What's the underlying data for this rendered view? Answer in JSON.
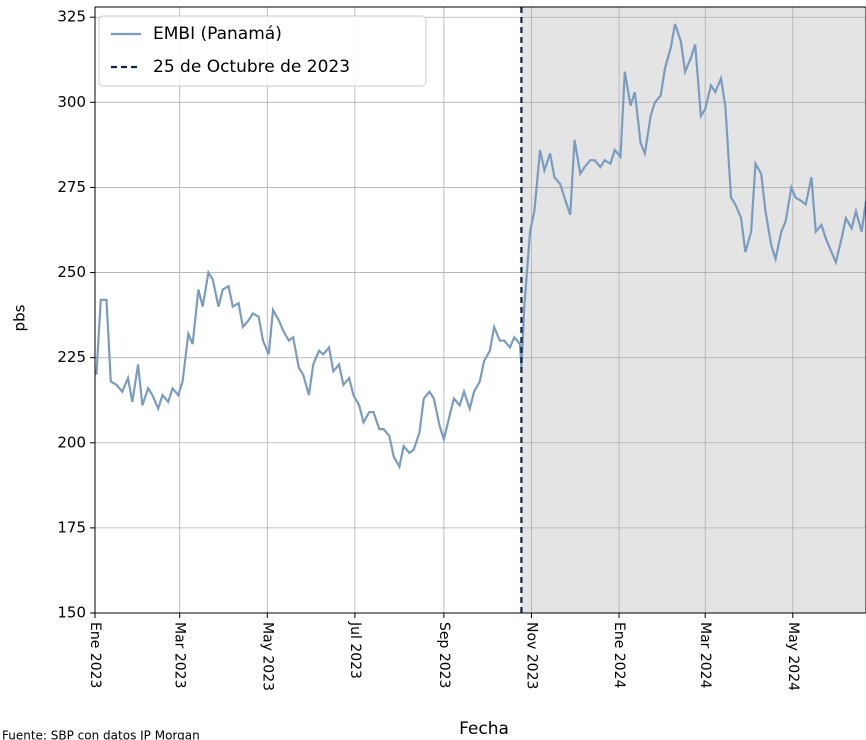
{
  "chart_data": {
    "type": "line",
    "ylabel": "pbs",
    "xlabel": "Fecha",
    "source": "Fuente: SBP con datos JP Morgan",
    "xlim": [
      "2023-01-01",
      "2024-06-21"
    ],
    "ylim": [
      150,
      328
    ],
    "yticks": [
      150,
      175,
      200,
      225,
      250,
      275,
      300,
      325
    ],
    "xticks": [
      {
        "value": "2023-01-01",
        "label": "Ene 2023"
      },
      {
        "value": "2023-03-01",
        "label": "Mar 2023"
      },
      {
        "value": "2023-05-01",
        "label": "May 2023"
      },
      {
        "value": "2023-07-01",
        "label": "Jul 2023"
      },
      {
        "value": "2023-09-01",
        "label": "Sep 2023"
      },
      {
        "value": "2023-11-01",
        "label": "Nov 2023"
      },
      {
        "value": "2024-01-01",
        "label": "Ene 2024"
      },
      {
        "value": "2024-03-01",
        "label": "Mar 2024"
      },
      {
        "value": "2024-05-01",
        "label": "May 2024"
      }
    ],
    "grid": true,
    "legend": "upper left",
    "vline": {
      "x": "2023-10-25",
      "label": "25 de Octubre de 2023",
      "color": "#0b2747",
      "style": "dashed"
    },
    "shade_after_vline": true,
    "shade_color": "#e4e4e4",
    "x": [
      "2023-01-02",
      "2023-01-05",
      "2023-01-09",
      "2023-01-12",
      "2023-01-16",
      "2023-01-20",
      "2023-01-24",
      "2023-01-27",
      "2023-01-31",
      "2023-02-03",
      "2023-02-07",
      "2023-02-10",
      "2023-02-14",
      "2023-02-17",
      "2023-02-21",
      "2023-02-24",
      "2023-02-28",
      "2023-03-03",
      "2023-03-07",
      "2023-03-10",
      "2023-03-14",
      "2023-03-17",
      "2023-03-21",
      "2023-03-24",
      "2023-03-28",
      "2023-03-31",
      "2023-04-04",
      "2023-04-07",
      "2023-04-11",
      "2023-04-14",
      "2023-04-18",
      "2023-04-21",
      "2023-04-25",
      "2023-04-28",
      "2023-05-02",
      "2023-05-05",
      "2023-05-09",
      "2023-05-12",
      "2023-05-16",
      "2023-05-19",
      "2023-05-23",
      "2023-05-26",
      "2023-05-30",
      "2023-06-02",
      "2023-06-06",
      "2023-06-09",
      "2023-06-13",
      "2023-06-16",
      "2023-06-20",
      "2023-06-23",
      "2023-06-27",
      "2023-06-30",
      "2023-07-04",
      "2023-07-07",
      "2023-07-11",
      "2023-07-14",
      "2023-07-18",
      "2023-07-21",
      "2023-07-25",
      "2023-07-28",
      "2023-08-01",
      "2023-08-04",
      "2023-08-08",
      "2023-08-11",
      "2023-08-15",
      "2023-08-18",
      "2023-08-22",
      "2023-08-25",
      "2023-08-29",
      "2023-09-01",
      "2023-09-05",
      "2023-09-08",
      "2023-09-12",
      "2023-09-15",
      "2023-09-19",
      "2023-09-22",
      "2023-09-26",
      "2023-09-29",
      "2023-10-03",
      "2023-10-06",
      "2023-10-10",
      "2023-10-13",
      "2023-10-17",
      "2023-10-20",
      "2023-10-24",
      "2023-10-25",
      "2023-10-27",
      "2023-10-31",
      "2023-11-03",
      "2023-11-07",
      "2023-11-10",
      "2023-11-14",
      "2023-11-17",
      "2023-11-21",
      "2023-11-24",
      "2023-11-28",
      "2023-12-01",
      "2023-12-05",
      "2023-12-08",
      "2023-12-12",
      "2023-12-15",
      "2023-12-19",
      "2023-12-22",
      "2023-12-26",
      "2023-12-29",
      "2024-01-02",
      "2024-01-05",
      "2024-01-09",
      "2024-01-12",
      "2024-01-16",
      "2024-01-19",
      "2024-01-23",
      "2024-01-26",
      "2024-01-30",
      "2024-02-02",
      "2024-02-06",
      "2024-02-09",
      "2024-02-13",
      "2024-02-16",
      "2024-02-20",
      "2024-02-23",
      "2024-02-27",
      "2024-03-01",
      "2024-03-05",
      "2024-03-08",
      "2024-03-12",
      "2024-03-15",
      "2024-03-19",
      "2024-03-22",
      "2024-03-26",
      "2024-03-29",
      "2024-04-02",
      "2024-04-05",
      "2024-04-09",
      "2024-04-12",
      "2024-04-16",
      "2024-04-19",
      "2024-04-23",
      "2024-04-26",
      "2024-04-30",
      "2024-05-03",
      "2024-05-07",
      "2024-05-10",
      "2024-05-14",
      "2024-05-17",
      "2024-05-21",
      "2024-05-24",
      "2024-05-28",
      "2024-05-31",
      "2024-06-04",
      "2024-06-07",
      "2024-06-11",
      "2024-06-14",
      "2024-06-18",
      "2024-06-21"
    ],
    "series": [
      {
        "name": "EMBI (Panamá)",
        "color": "#7a9cc0",
        "values": [
          220,
          242,
          242,
          218,
          217,
          215,
          219,
          212,
          223,
          211,
          216,
          214,
          210,
          214,
          212,
          216,
          214,
          218,
          232,
          229,
          245,
          240,
          250,
          248,
          240,
          245,
          246,
          240,
          241,
          234,
          236,
          238,
          237,
          230,
          226,
          239,
          236,
          233,
          230,
          231,
          222,
          220,
          214,
          223,
          227,
          226,
          228,
          221,
          223,
          217,
          219,
          214,
          211,
          206,
          209,
          209,
          204,
          204,
          202,
          196,
          193,
          199,
          197,
          198,
          203,
          213,
          215,
          213,
          205,
          201,
          208,
          213,
          211,
          215,
          210,
          215,
          218,
          224,
          227,
          234,
          230,
          230,
          228,
          231,
          229,
          222,
          240,
          262,
          268,
          286,
          280,
          285,
          278,
          276,
          272,
          267,
          289,
          279,
          281,
          283,
          283,
          281,
          283,
          282,
          286,
          284,
          309,
          299,
          303,
          288,
          285,
          296,
          300,
          302,
          310,
          316,
          323,
          318,
          309,
          313,
          317,
          296,
          298,
          305,
          303,
          307,
          299,
          272,
          270,
          266,
          256,
          262,
          282,
          279,
          268,
          258,
          254,
          262,
          265,
          275,
          272,
          271,
          270,
          278,
          262,
          264,
          260,
          256,
          253,
          260,
          266,
          263,
          268,
          262,
          271
        ]
      }
    ]
  }
}
